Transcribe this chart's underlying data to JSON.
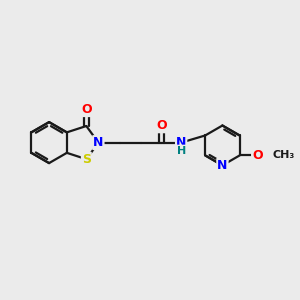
{
  "background_color": "#ebebeb",
  "bond_color": "#1a1a1a",
  "atom_colors": {
    "O": "#ff0000",
    "N": "#0000ff",
    "S": "#cccc00",
    "NH": "#008080",
    "C": "#1a1a1a"
  },
  "figsize": [
    3.0,
    3.0
  ],
  "dpi": 100,
  "xlim": [
    0,
    10
  ],
  "ylim": [
    0,
    10
  ]
}
